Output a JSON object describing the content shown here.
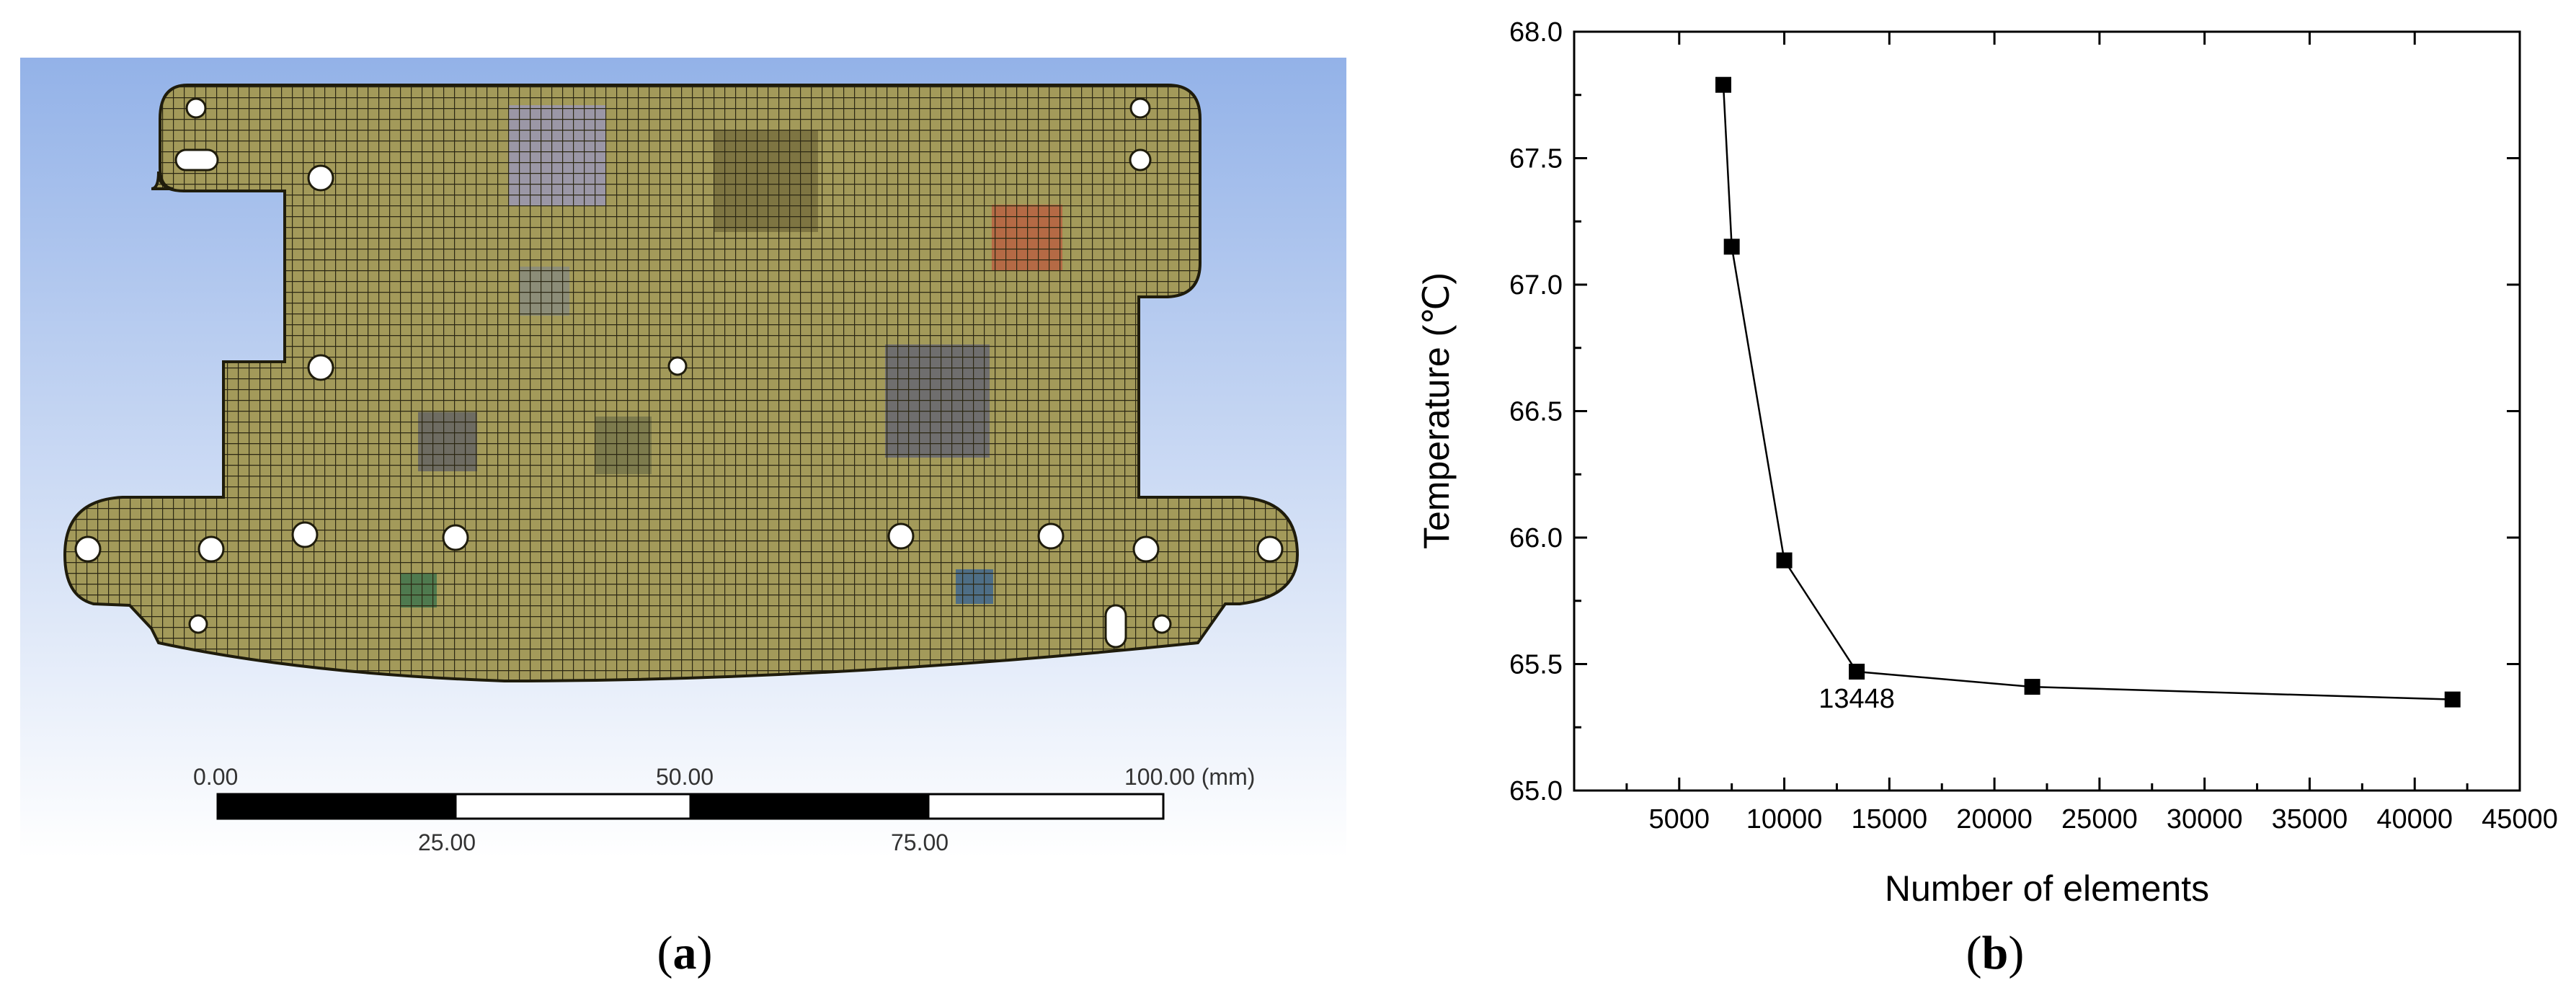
{
  "panel_a": {
    "caption_prefix": "(",
    "caption_letter": "a",
    "caption_suffix": ")",
    "scale_bar": {
      "labels_top": [
        "0.00",
        "50.00",
        "100.00 (mm)"
      ],
      "labels_bottom": [
        "25.00",
        "75.00"
      ]
    },
    "colors": {
      "mesh_fill": "#a39a5a",
      "mesh_line": "#2b2713",
      "background_top": "#93b2e8",
      "background_bottom": "#ffffff"
    }
  },
  "panel_b": {
    "caption_prefix": "(",
    "caption_letter": "b",
    "caption_suffix": ")"
  },
  "chart_data": {
    "type": "line",
    "title": "",
    "xlabel": "Number of elements",
    "ylabel": "Temperature (℃)",
    "xlim": [
      0,
      45000
    ],
    "ylim": [
      65.0,
      68.0
    ],
    "x_ticks": [
      5000,
      10000,
      15000,
      20000,
      25000,
      30000,
      35000,
      40000,
      45000
    ],
    "x_tick_labels": [
      "5000",
      "10000",
      "15000",
      "20000",
      "25000",
      "30000",
      "35000",
      "40000",
      "45000"
    ],
    "y_ticks": [
      65.0,
      65.5,
      66.0,
      66.5,
      67.0,
      67.5,
      68.0
    ],
    "y_tick_labels": [
      "65.0",
      "65.5",
      "66.0",
      "66.5",
      "67.0",
      "67.5",
      "68.0"
    ],
    "grid": false,
    "marker": "square",
    "series": [
      {
        "x": [
          7100,
          7500,
          10000,
          13448,
          21800,
          41800
        ],
        "y": [
          67.79,
          67.15,
          65.91,
          65.47,
          65.41,
          65.36
        ]
      }
    ],
    "annotations": [
      {
        "text": "13448",
        "x": 13448,
        "y": 65.47
      }
    ],
    "colors": {
      "line": "#000000",
      "marker": "#000000"
    }
  }
}
